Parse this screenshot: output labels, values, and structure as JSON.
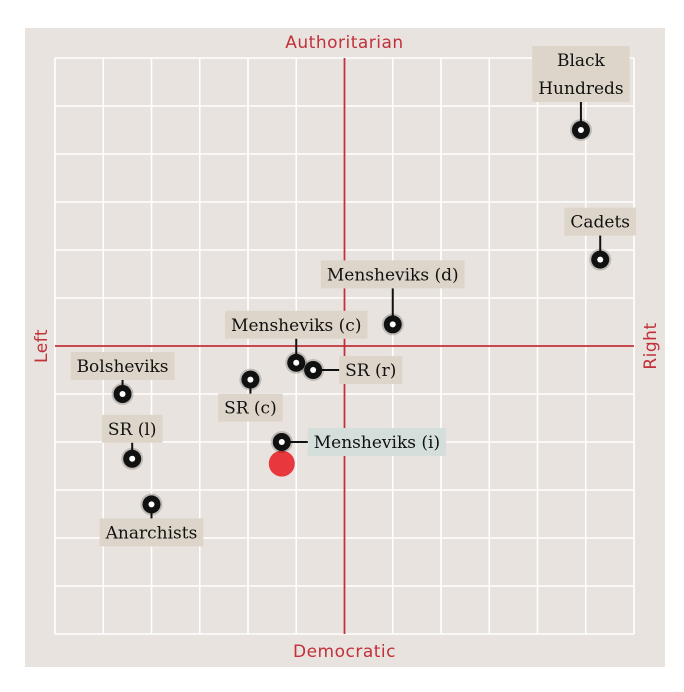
{
  "chart_data": {
    "type": "scatter",
    "axes": {
      "top": "Authoritarian",
      "bottom": "Democratic",
      "left": "Left",
      "right": "Right"
    },
    "xlim": [
      -6,
      6
    ],
    "ylim": [
      -6,
      6
    ],
    "grid": true,
    "points": [
      {
        "label": "Black\nHundreds",
        "x": 4.9,
        "y": 4.5,
        "highlight": false
      },
      {
        "label": "Cadets",
        "x": 5.3,
        "y": 1.8,
        "highlight": false
      },
      {
        "label": "Mensheviks (d)",
        "x": 1.0,
        "y": 0.45,
        "highlight": false
      },
      {
        "label": "Mensheviks (c)",
        "x": -1.0,
        "y": -0.35,
        "highlight": false
      },
      {
        "label": "SR (r)",
        "x": -0.65,
        "y": -0.5,
        "highlight": false
      },
      {
        "label": "SR (c)",
        "x": -1.95,
        "y": -0.7,
        "highlight": false
      },
      {
        "label": "Bolsheviks",
        "x": -4.6,
        "y": -1.0,
        "highlight": false
      },
      {
        "label": "SR (l)",
        "x": -4.4,
        "y": -2.35,
        "highlight": false
      },
      {
        "label": "Mensheviks (i)",
        "x": -1.3,
        "y": -2.0,
        "highlight": true
      },
      {
        "label": "Anarchists",
        "x": -4.0,
        "y": -3.3,
        "highlight": false
      }
    ],
    "user_marker": {
      "x": -1.3,
      "y": -2.45,
      "color": "#e8383d"
    },
    "colors": {
      "background": "#e8e3de",
      "grid": "#ffffff",
      "axis": "#c0313a",
      "point": "#111111",
      "label_bg": "#ddd5c9",
      "highlight_label_bg": "#d4dfdc"
    }
  }
}
